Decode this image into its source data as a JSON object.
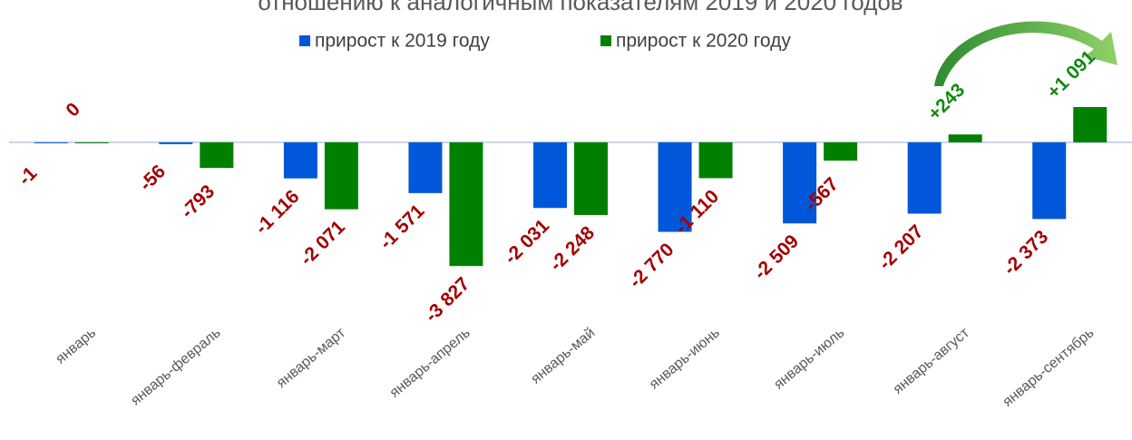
{
  "chart_data": {
    "type": "bar",
    "title": "отношению к аналогичным показателям 2019 и 2020 годов",
    "categories": [
      "январь",
      "январь-февраль",
      "январь-март",
      "январь-апрель",
      "январь-май",
      "январь-июнь",
      "январь-июль",
      "январь-август",
      "январь-сентябрь"
    ],
    "series": [
      {
        "name": "прирост к 2019 году",
        "color": "#0057d9",
        "values": [
          -1,
          -56,
          -1116,
          -1571,
          -2031,
          -2770,
          -2509,
          -2207,
          -2373
        ],
        "value_labels": [
          "-1",
          "-56",
          "-1 116",
          "-1 571",
          "-2 031",
          "-2 770",
          "-2 509",
          "-2 207",
          "-2 373"
        ]
      },
      {
        "name": "прирост к 2020 году",
        "color": "#008000",
        "values": [
          0,
          -793,
          -2071,
          -3827,
          -2248,
          -1110,
          -567,
          243,
          1091
        ],
        "value_labels": [
          "0",
          "-793",
          "-2 071",
          "-3 827",
          "-2 248",
          "-1 110",
          "-567",
          "+243",
          "+1 091"
        ]
      }
    ],
    "ylim": [
      -5000,
      3000
    ],
    "legend": "top"
  }
}
